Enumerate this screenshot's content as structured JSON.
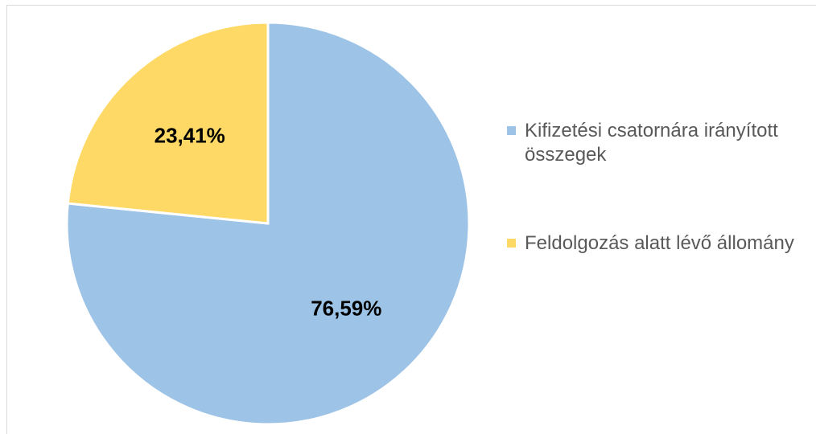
{
  "chart_data": {
    "type": "pie",
    "categories": [
      "Kifizetési csatornára irányított összegek",
      "Feldolgozás alatt lévő állomány"
    ],
    "values": [
      76.59,
      23.41
    ],
    "value_labels": [
      "76,59%",
      "23,41%"
    ],
    "colors": [
      "#9dc3e6",
      "#ffd966"
    ],
    "start_angle": 0,
    "direction": "clockwise",
    "legend": "right"
  }
}
